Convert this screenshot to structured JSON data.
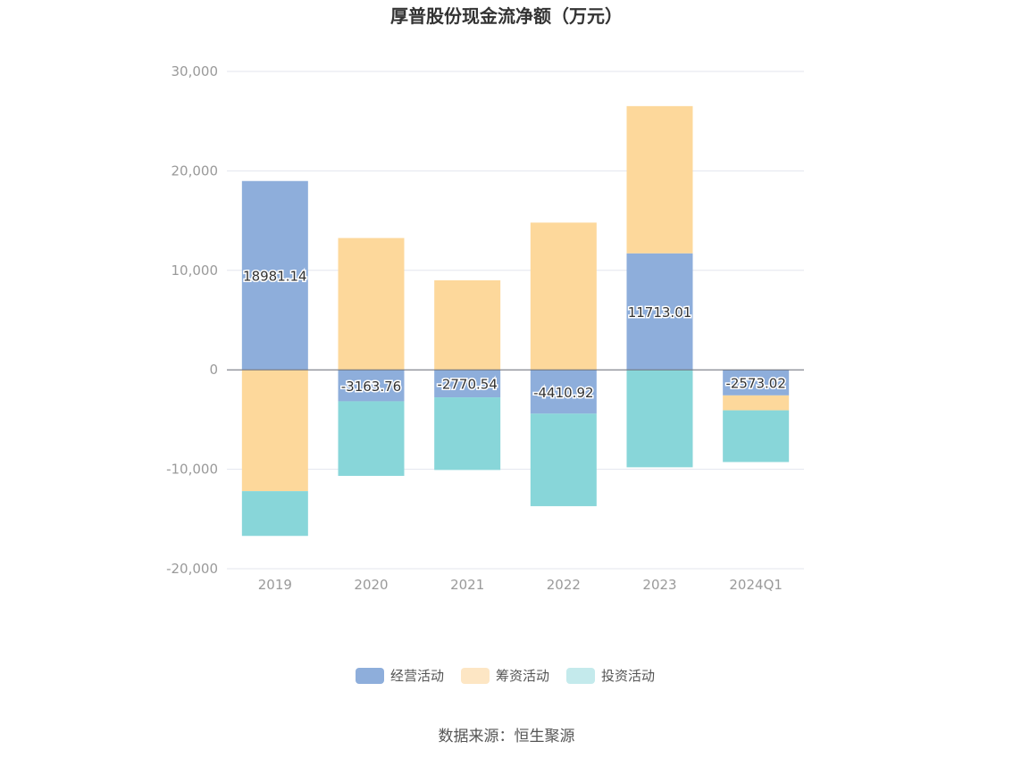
{
  "chart_data": {
    "type": "bar",
    "stacked": true,
    "title": "厚普股份现金流净额（万元）",
    "categories": [
      "2019",
      "2020",
      "2021",
      "2022",
      "2023",
      "2024Q1"
    ],
    "ylim": [
      -20000,
      30000
    ],
    "yticks": [
      30000,
      20000,
      10000,
      0,
      -10000,
      -20000
    ],
    "ytick_labels": [
      "30,000",
      "20,000",
      "10,000",
      "0",
      "-10,000",
      "-20,000"
    ],
    "grid": true,
    "legend_position": "bottom",
    "series": [
      {
        "name": "经营活动",
        "color": "#8eaedb",
        "values": [
          18981.14,
          -3163.76,
          -2770.54,
          -4410.92,
          11713.01,
          -2573.02
        ],
        "labels": [
          "18981.14",
          "-3163.76",
          "-2770.54",
          "-4410.92",
          "11713.01",
          "-2573.02"
        ]
      },
      {
        "name": "筹资活动",
        "color": "#fdd89b",
        "values": [
          -12200,
          13250,
          9000,
          14800,
          14800,
          -1500
        ]
      },
      {
        "name": "投资活动",
        "color": "#88d6d9",
        "values": [
          -4500,
          -7500,
          -7300,
          -9300,
          -9800,
          -5200
        ]
      }
    ],
    "legend_colors": [
      "#8eaedb",
      "#fde6c4",
      "#c4eaec"
    ],
    "source": "数据来源：恒生聚源"
  }
}
